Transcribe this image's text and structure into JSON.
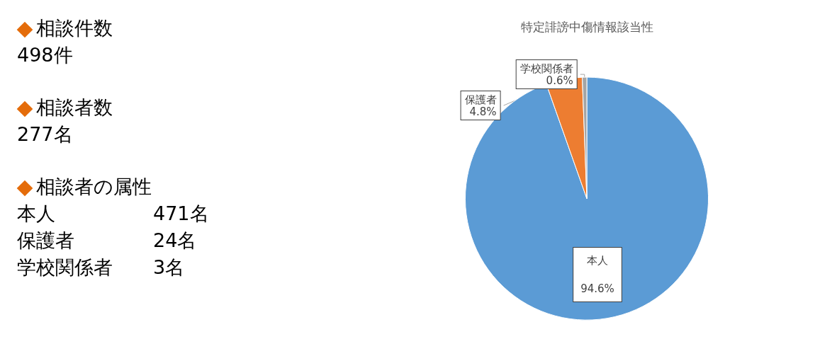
{
  "chart_data": [
    {
      "type": "other",
      "annotations": [
        "相談件数",
        "498件",
        "相談者数",
        "277名",
        "相談者の属性",
        "本人",
        "471名",
        "保護者",
        "24名",
        "学校関係者",
        "3名"
      ]
    },
    {
      "type": "pie",
      "title": "特定誹謗中傷情報該当性",
      "categories": [
        "本人",
        "保護者",
        "学校関係者"
      ],
      "values": [
        94.6,
        4.8,
        0.6
      ],
      "colors": [
        "#5b9bd5",
        "#ed7d31",
        "#a5a5a5"
      ],
      "value_labels": [
        "94.6%",
        "4.8%",
        "0.6%"
      ],
      "legend": false
    }
  ]
}
